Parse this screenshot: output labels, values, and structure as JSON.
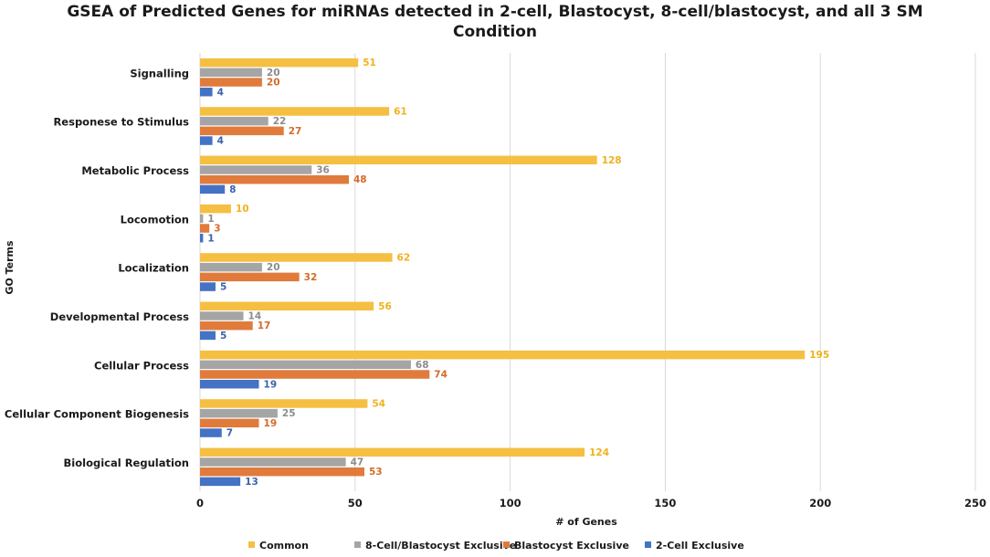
{
  "chart_data": {
    "type": "bar",
    "orientation": "horizontal",
    "title_line1": "GSEA of Predicted Genes for miRNAs detected in 2-cell, Blastocyst, 8-cell/blastocyst, and all 3 SM",
    "title_line2": "Condition",
    "xlabel": "# of Genes",
    "ylabel": "GO Terms",
    "xlim": [
      0,
      250
    ],
    "xticks": [
      0,
      50,
      100,
      150,
      200,
      250
    ],
    "grid": true,
    "legend_position": "bottom",
    "categories": [
      "Signalling",
      "Responese to Stimulus",
      "Metabolic Process",
      "Locomotion",
      "Localization",
      "Developmental Process",
      "Cellular Process",
      "Cellular Component Biogenesis",
      "Biological Regulation"
    ],
    "series": [
      {
        "name": "Common",
        "color": "#f5bf42",
        "label_color": "#f0b21c",
        "values": [
          51,
          61,
          128,
          10,
          62,
          56,
          195,
          54,
          124
        ]
      },
      {
        "name": "8-Cell/Blastocyst Exclusive",
        "color": "#a5a5a5",
        "label_color": "#8c8c8c",
        "values": [
          20,
          22,
          36,
          1,
          20,
          14,
          68,
          25,
          47
        ]
      },
      {
        "name": "Blastocyst Exclusive",
        "color": "#e07b3c",
        "label_color": "#d46b2a",
        "values": [
          20,
          27,
          48,
          3,
          32,
          17,
          74,
          19,
          53
        ]
      },
      {
        "name": "2-Cell Exclusive",
        "color": "#4472c4",
        "label_color": "#3a62b0",
        "values": [
          4,
          4,
          8,
          1,
          5,
          5,
          19,
          7,
          13
        ]
      }
    ]
  }
}
